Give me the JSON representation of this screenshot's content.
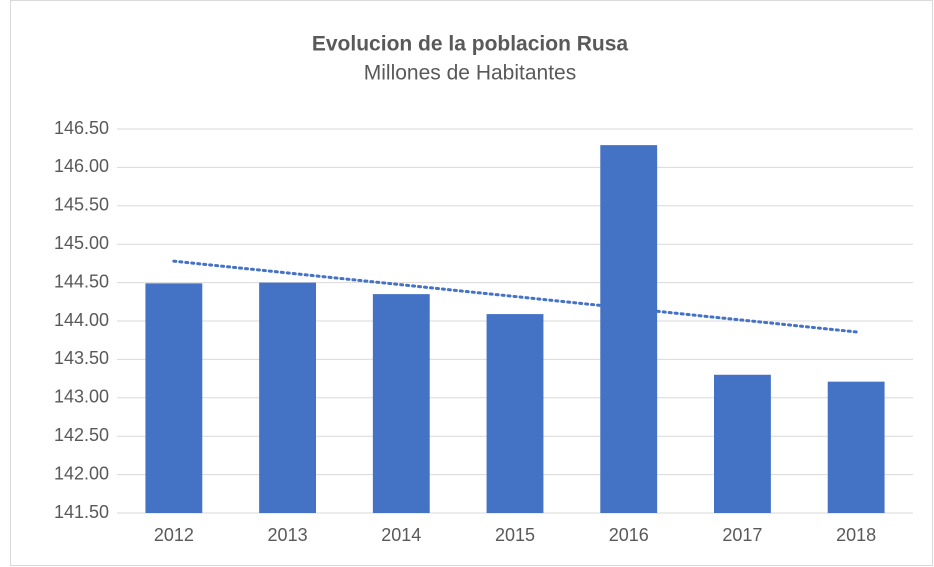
{
  "chart_data": {
    "type": "bar",
    "title": "Evolucion de la poblacion Rusa",
    "subtitle": "Millones de Habitantes",
    "categories": [
      "2012",
      "2013",
      "2014",
      "2015",
      "2016",
      "2017",
      "2018"
    ],
    "values": [
      144.49,
      144.5,
      144.35,
      144.09,
      146.29,
      143.3,
      143.21
    ],
    "color": "#4472c4",
    "ylim": [
      141.5,
      146.5
    ],
    "yticks": [
      {
        "value": 141.5,
        "label": "141.50"
      },
      {
        "value": 142,
        "label": "142.00"
      },
      {
        "value": 142.5,
        "label": "142.50"
      },
      {
        "value": 143,
        "label": "143.00"
      },
      {
        "value": 143.5,
        "label": "143.50"
      },
      {
        "value": 144,
        "label": "144.00"
      },
      {
        "value": 144.5,
        "label": "144.50"
      },
      {
        "value": 145,
        "label": "145.00"
      },
      {
        "value": 145.5,
        "label": "145.50"
      },
      {
        "value": 146,
        "label": "146.00"
      },
      {
        "value": 146.5,
        "label": "146.50"
      }
    ],
    "grid": true,
    "trendline": "linear"
  }
}
